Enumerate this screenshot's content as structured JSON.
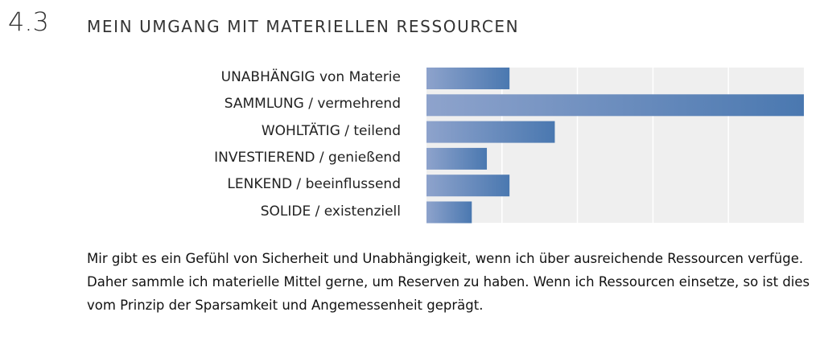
{
  "section_number": "4.3",
  "section_title": "MEIN UMGANG MIT MATERIELLEN RESSOURCEN",
  "chart_data": {
    "type": "bar",
    "orientation": "horizontal",
    "categories": [
      "UNABHÄNGIG von Materie",
      "SAMMLUNG / vermehrend",
      "WOHLTÄTIG / teilend",
      "INVESTIEREND / genießend",
      "LENKEND / beeinflussend",
      "SOLIDE / existenziell"
    ],
    "values": [
      1.1,
      5.0,
      1.7,
      0.8,
      1.1,
      0.6
    ],
    "xlim": [
      0,
      5
    ],
    "grid": true,
    "colors": {
      "bar_start": "#8ea3cc",
      "bar_end": "#4a78b0",
      "background": "#efefef",
      "grid": "#ffffff"
    }
  },
  "description": "Mir gibt es ein Gefühl von Sicherheit und Unabhängigkeit, wenn ich über ausreichende Ressourcen verfüge. Daher sammle ich materielle Mittel gerne, um Reserven zu haben. Wenn ich Ressourcen einsetze, so ist dies vom Prinzip der Sparsamkeit und Angemessenheit geprägt."
}
